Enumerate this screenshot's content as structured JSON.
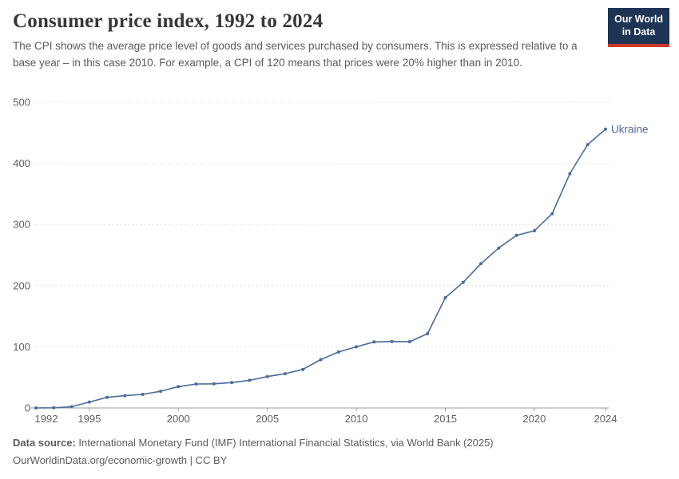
{
  "header": {
    "title": "Consumer price index, 1992 to 2024",
    "subtitle": "The CPI shows the average price level of goods and services purchased by consumers. This is expressed relative to a base year – in this case 2010. For example, a CPI of 120 means that prices were 20% higher than in 2010."
  },
  "logo": {
    "line1": "Our World",
    "line2": "in Data",
    "bg_color": "#1d3455",
    "accent_color": "#d0382c"
  },
  "chart_data": {
    "type": "line",
    "title": "Consumer price index, 1992 to 2024",
    "xlabel": "",
    "ylabel": "",
    "xlim": [
      1992,
      2024
    ],
    "ylim": [
      0,
      500
    ],
    "x_ticks": [
      1992,
      1995,
      2000,
      2005,
      2010,
      2015,
      2020,
      2024
    ],
    "y_ticks": [
      0,
      100,
      200,
      300,
      400,
      500
    ],
    "grid": "horizontal-dashed",
    "legend_position": "end-of-line-label",
    "x": [
      1992,
      1993,
      1994,
      1995,
      1996,
      1997,
      1998,
      1999,
      2000,
      2001,
      2002,
      2003,
      2004,
      2005,
      2006,
      2007,
      2008,
      2009,
      2010,
      2011,
      2012,
      2013,
      2014,
      2015,
      2016,
      2017,
      2018,
      2019,
      2020,
      2021,
      2022,
      2023,
      2024
    ],
    "series": [
      {
        "name": "Ukraine",
        "color": "#4c6a9c",
        "values": [
          0.004,
          0.2,
          2.0,
          9.6,
          17.3,
          20.1,
          22.2,
          27.3,
          34.9,
          39.1,
          39.4,
          41.5,
          45.2,
          51.3,
          56.0,
          63.1,
          79.0,
          91.5,
          100.0,
          108.0,
          108.6,
          108.3,
          121.4,
          180.3,
          205.4,
          235.9,
          261.5,
          282.2,
          289.7,
          317.6,
          383.2,
          430.7,
          455.9
        ]
      }
    ],
    "style": {
      "gridline_color": "#dedede",
      "axis_color": "#9a9a9a",
      "tick_label_color": "#5f5f5f"
    }
  },
  "footer": {
    "source_label": "Data source:",
    "source_text": " International Monetary Fund (IMF) International Financial Statistics, via World Bank (2025)",
    "link_line": "OurWorldinData.org/economic-growth | CC BY"
  }
}
